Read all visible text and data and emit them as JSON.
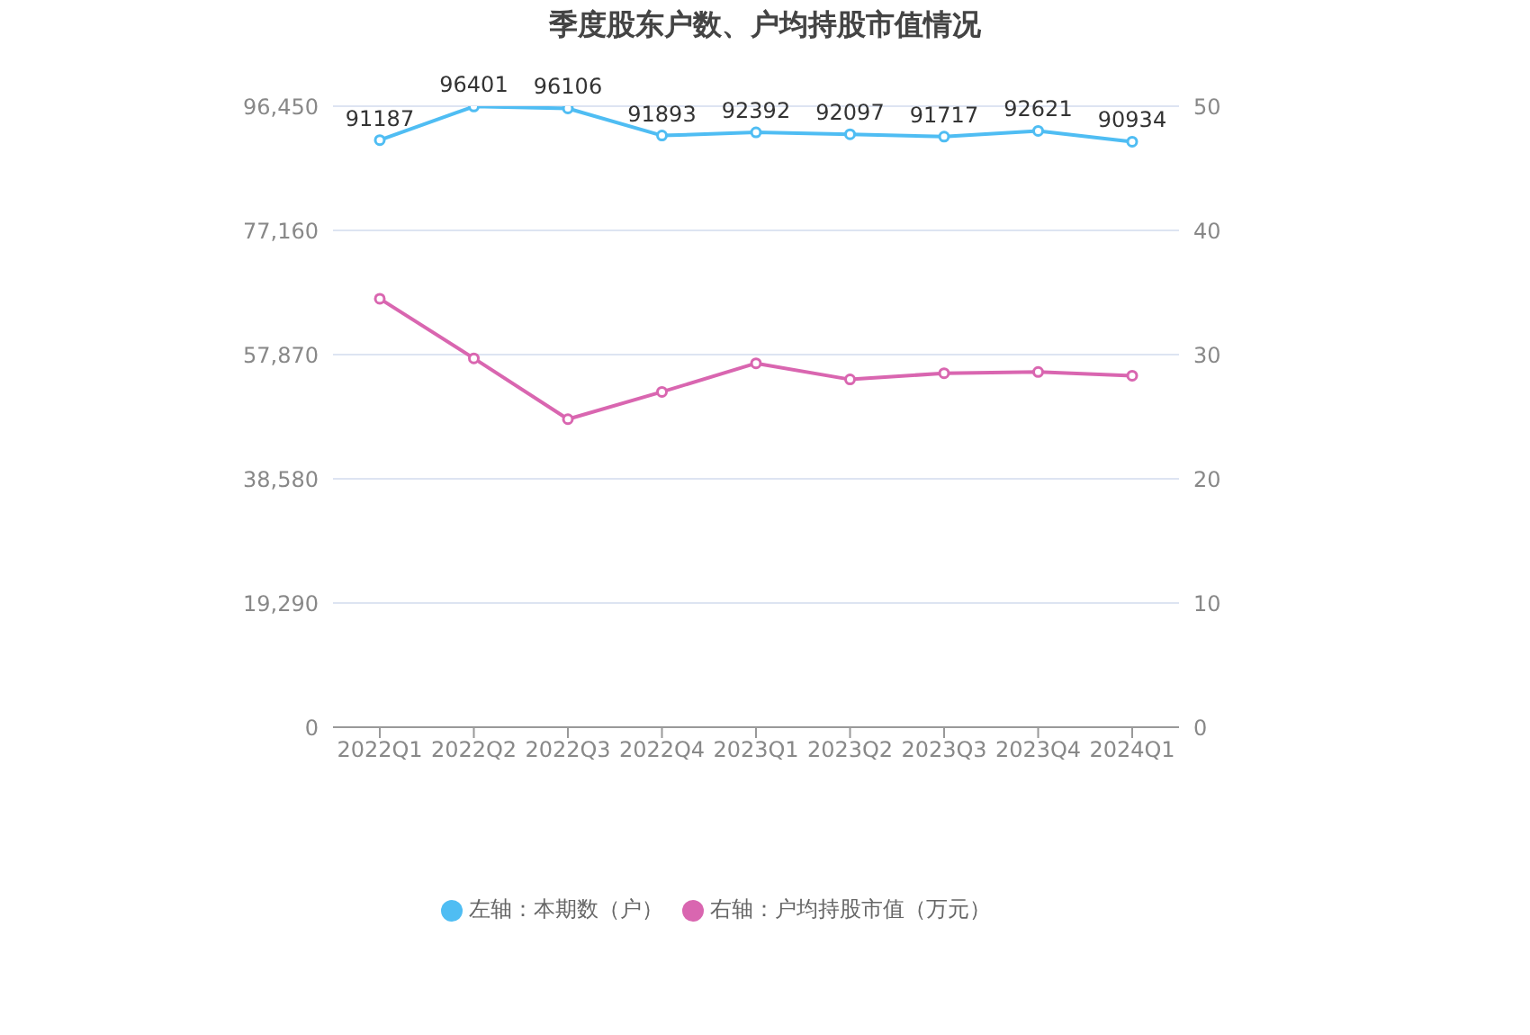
{
  "chart_data": {
    "type": "line",
    "title": "季度股东户数、户均持股市值情况",
    "categories": [
      "2022Q1",
      "2022Q2",
      "2022Q3",
      "2022Q4",
      "2023Q1",
      "2023Q2",
      "2023Q3",
      "2023Q4",
      "2024Q1"
    ],
    "series": [
      {
        "name": "左轴：本期数（户）",
        "color": "#4fbdf3",
        "values": [
          91187,
          96401,
          96106,
          91893,
          92392,
          92097,
          91717,
          92621,
          90934
        ],
        "value_labels": [
          "91187",
          "96401",
          "96106",
          "91893",
          "92392",
          "92097",
          "91717",
          "92621",
          "90934"
        ]
      },
      {
        "name": "右轴：户均持股市值（万元）",
        "color": "#d966b0",
        "axis": "y2",
        "values": [
          34.5,
          29.7,
          24.8,
          27.0,
          29.3,
          28.0,
          28.5,
          28.6,
          28.3
        ]
      }
    ],
    "ylim": [
      0,
      96450
    ],
    "yticks": [
      0,
      {
        "value": 19290,
        "label": "19,290"
      },
      {
        "value": 38580,
        "label": "38,580"
      },
      {
        "value": 57870,
        "label": "57,870"
      },
      {
        "value": 77160,
        "label": "77,160"
      },
      {
        "value": 96450,
        "label": "96,450"
      }
    ],
    "y2lim": [
      0,
      50
    ],
    "y2ticks": [
      0,
      10,
      20,
      30,
      40,
      50
    ],
    "grid": "y",
    "legend": "bottom",
    "marker": "circle",
    "line_style": "solid"
  }
}
